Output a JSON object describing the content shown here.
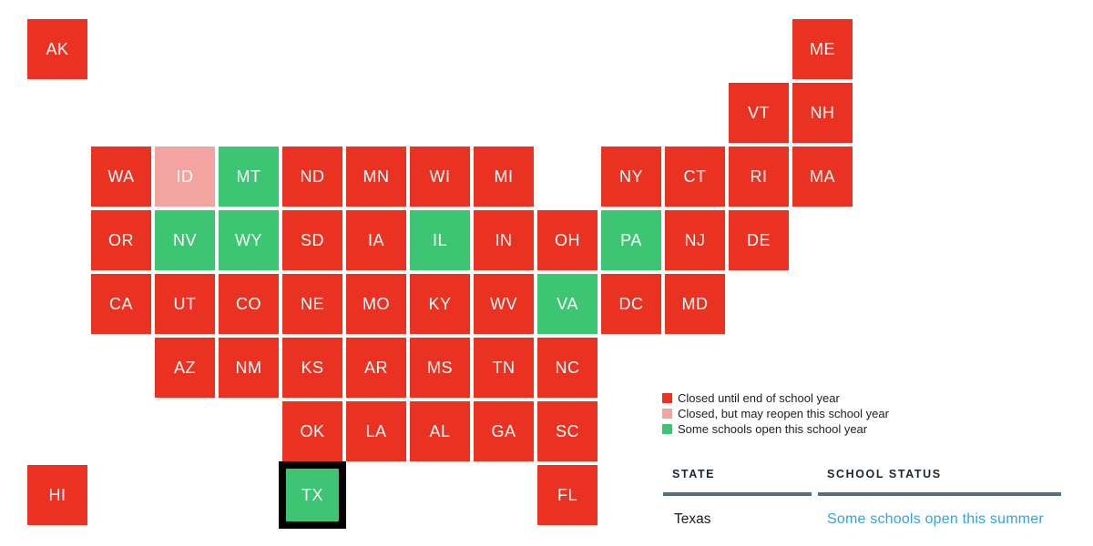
{
  "map": {
    "states": [
      {
        "abbr": "AK",
        "col": 0,
        "row": 0,
        "status": "closed"
      },
      {
        "abbr": "ME",
        "col": 12,
        "row": 0,
        "status": "closed"
      },
      {
        "abbr": "VT",
        "col": 11,
        "row": 1,
        "status": "closed"
      },
      {
        "abbr": "NH",
        "col": 12,
        "row": 1,
        "status": "closed"
      },
      {
        "abbr": "WA",
        "col": 1,
        "row": 2,
        "status": "closed"
      },
      {
        "abbr": "ID",
        "col": 2,
        "row": 2,
        "status": "may_reopen"
      },
      {
        "abbr": "MT",
        "col": 3,
        "row": 2,
        "status": "some_open"
      },
      {
        "abbr": "ND",
        "col": 4,
        "row": 2,
        "status": "closed"
      },
      {
        "abbr": "MN",
        "col": 5,
        "row": 2,
        "status": "closed"
      },
      {
        "abbr": "WI",
        "col": 6,
        "row": 2,
        "status": "closed"
      },
      {
        "abbr": "MI",
        "col": 7,
        "row": 2,
        "status": "closed"
      },
      {
        "abbr": "NY",
        "col": 9,
        "row": 2,
        "status": "closed"
      },
      {
        "abbr": "CT",
        "col": 10,
        "row": 2,
        "status": "closed"
      },
      {
        "abbr": "RI",
        "col": 11,
        "row": 2,
        "status": "closed"
      },
      {
        "abbr": "MA",
        "col": 12,
        "row": 2,
        "status": "closed"
      },
      {
        "abbr": "OR",
        "col": 1,
        "row": 3,
        "status": "closed"
      },
      {
        "abbr": "NV",
        "col": 2,
        "row": 3,
        "status": "some_open"
      },
      {
        "abbr": "WY",
        "col": 3,
        "row": 3,
        "status": "some_open"
      },
      {
        "abbr": "SD",
        "col": 4,
        "row": 3,
        "status": "closed"
      },
      {
        "abbr": "IA",
        "col": 5,
        "row": 3,
        "status": "closed"
      },
      {
        "abbr": "IL",
        "col": 6,
        "row": 3,
        "status": "some_open"
      },
      {
        "abbr": "IN",
        "col": 7,
        "row": 3,
        "status": "closed"
      },
      {
        "abbr": "OH",
        "col": 8,
        "row": 3,
        "status": "closed"
      },
      {
        "abbr": "PA",
        "col": 9,
        "row": 3,
        "status": "some_open"
      },
      {
        "abbr": "NJ",
        "col": 10,
        "row": 3,
        "status": "closed"
      },
      {
        "abbr": "DE",
        "col": 11,
        "row": 3,
        "status": "closed"
      },
      {
        "abbr": "CA",
        "col": 1,
        "row": 4,
        "status": "closed"
      },
      {
        "abbr": "UT",
        "col": 2,
        "row": 4,
        "status": "closed"
      },
      {
        "abbr": "CO",
        "col": 3,
        "row": 4,
        "status": "closed"
      },
      {
        "abbr": "NE",
        "col": 4,
        "row": 4,
        "status": "closed"
      },
      {
        "abbr": "MO",
        "col": 5,
        "row": 4,
        "status": "closed"
      },
      {
        "abbr": "KY",
        "col": 6,
        "row": 4,
        "status": "closed"
      },
      {
        "abbr": "WV",
        "col": 7,
        "row": 4,
        "status": "closed"
      },
      {
        "abbr": "VA",
        "col": 8,
        "row": 4,
        "status": "some_open"
      },
      {
        "abbr": "DC",
        "col": 9,
        "row": 4,
        "status": "closed"
      },
      {
        "abbr": "MD",
        "col": 10,
        "row": 4,
        "status": "closed"
      },
      {
        "abbr": "AZ",
        "col": 2,
        "row": 5,
        "status": "closed"
      },
      {
        "abbr": "NM",
        "col": 3,
        "row": 5,
        "status": "closed"
      },
      {
        "abbr": "KS",
        "col": 4,
        "row": 5,
        "status": "closed"
      },
      {
        "abbr": "AR",
        "col": 5,
        "row": 5,
        "status": "closed"
      },
      {
        "abbr": "MS",
        "col": 6,
        "row": 5,
        "status": "closed"
      },
      {
        "abbr": "TN",
        "col": 7,
        "row": 5,
        "status": "closed"
      },
      {
        "abbr": "NC",
        "col": 8,
        "row": 5,
        "status": "closed"
      },
      {
        "abbr": "OK",
        "col": 4,
        "row": 6,
        "status": "closed"
      },
      {
        "abbr": "LA",
        "col": 5,
        "row": 6,
        "status": "closed"
      },
      {
        "abbr": "AL",
        "col": 6,
        "row": 6,
        "status": "closed"
      },
      {
        "abbr": "GA",
        "col": 7,
        "row": 6,
        "status": "closed"
      },
      {
        "abbr": "SC",
        "col": 8,
        "row": 6,
        "status": "closed"
      },
      {
        "abbr": "HI",
        "col": 0,
        "row": 7,
        "status": "closed"
      },
      {
        "abbr": "TX",
        "col": 4,
        "row": 7,
        "status": "some_open",
        "selected": true
      },
      {
        "abbr": "FL",
        "col": 8,
        "row": 7,
        "status": "closed"
      }
    ]
  },
  "colors": {
    "closed": "#ea3223",
    "may_reopen": "#f4a4a0",
    "some_open": "#3dc573",
    "selected_border": "#000000",
    "tile_label": "#ffffff",
    "link_blue": "#35a1df",
    "rule": "#53707e"
  },
  "legend": {
    "items": [
      {
        "status": "closed",
        "label": "Closed until end of school year"
      },
      {
        "status": "may_reopen",
        "label": "Closed, but may reopen this school year"
      },
      {
        "status": "some_open",
        "label": "Some schools open this school year"
      }
    ]
  },
  "detail_table": {
    "columns": [
      {
        "header": "STATE"
      },
      {
        "header": "SCHOOL STATUS"
      }
    ],
    "row": {
      "state": "Texas",
      "status": "Some schools open this summer"
    }
  }
}
